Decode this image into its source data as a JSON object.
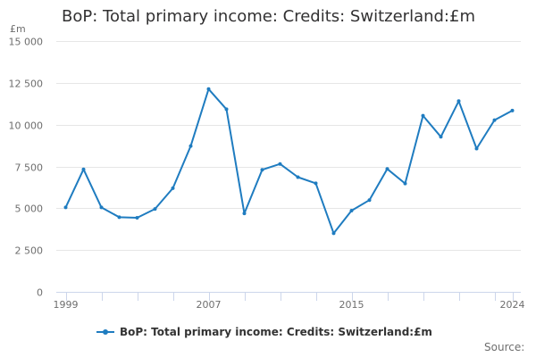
{
  "chart_data": {
    "type": "line",
    "title": "BoP: Total primary income: Credits: Switzerland:£m",
    "ylabel": "£m",
    "xlabel": "",
    "ylim": [
      0,
      15000
    ],
    "y_ticks": [
      0,
      2500,
      5000,
      7500,
      10000,
      12500,
      15000
    ],
    "y_tick_labels": [
      "0",
      "2 500",
      "5 000",
      "7 500",
      "10 000",
      "12 500",
      "15 000"
    ],
    "x_tick_labels": [
      "1999",
      "2007",
      "2015",
      "2024"
    ],
    "grid": true,
    "legend_position": "bottom",
    "x": [
      1999,
      2000,
      2001,
      2002,
      2003,
      2004,
      2005,
      2006,
      2007,
      2008,
      2009,
      2010,
      2011,
      2012,
      2013,
      2014,
      2015,
      2016,
      2017,
      2018,
      2019,
      2020,
      2021,
      2022,
      2023,
      2024
    ],
    "series": [
      {
        "name": "BoP: Total primary income: Credits: Switzerland:£m",
        "color": "#1f7cc0",
        "values": [
          5050,
          7330,
          5050,
          4460,
          4430,
          4960,
          6200,
          8720,
          12130,
          10920,
          4690,
          7300,
          7650,
          6860,
          6490,
          3500,
          4860,
          5490,
          7350,
          6480,
          10540,
          9270,
          11410,
          8570,
          10270,
          10840
        ]
      }
    ]
  },
  "header": {
    "title": "BoP: Total primary income: Credits: Switzerland:£m",
    "unit": "£m"
  },
  "legend": {
    "label": "BoP: Total primary income: Credits: Switzerland:£m",
    "marker_icon": "line-dot-marker-icon"
  },
  "footer": {
    "source_label": "Source:"
  },
  "colors": {
    "series": "#1f7cc0",
    "grid": "#e6e6e6",
    "axis": "#ccd6eb",
    "text": "#6e6e6e",
    "title": "#323132"
  }
}
